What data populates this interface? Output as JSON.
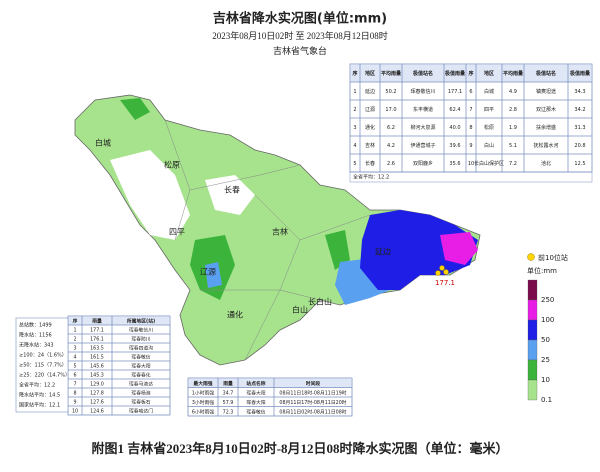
{
  "header": {
    "title": "吉林省降水实况图(单位:mm)",
    "subtitle": "2023年08月10日02时 至 2023年08月12日08时",
    "agency": "吉林省气象台"
  },
  "region_table": {
    "header": [
      "序",
      "地区",
      "平均雨量",
      "极值站名",
      "极值雨量",
      "序",
      "地区",
      "平均雨量",
      "极值站名",
      "极值雨量"
    ],
    "rows": [
      [
        "1",
        "延边",
        "50.2",
        "珲春敬信川",
        "177.1",
        "6",
        "白城",
        "4.9",
        "镇赉坦途",
        "34.3"
      ],
      [
        "2",
        "辽源",
        "17.0",
        "东丰横道",
        "62.4",
        "7",
        "四平",
        "2.8",
        "双辽那木",
        "34.2"
      ],
      [
        "3",
        "通化",
        "6.2",
        "柳河大泉源",
        "40.0",
        "8",
        "松原",
        "1.9",
        "扶余增盛",
        "31.3"
      ],
      [
        "4",
        "吉林",
        "4.2",
        "伊通营城子",
        "39.6",
        "9",
        "白山",
        "5.1",
        "抚松露水河",
        "20.8"
      ],
      [
        "5",
        "长春",
        "2.6",
        "双阳鹿乡",
        "35.6",
        "10",
        "长白山保护区",
        "7.2",
        "池北",
        "12.5"
      ]
    ],
    "footer": "全省平均：12.2"
  },
  "stats": [
    "总站数：1499",
    "降水站：1156",
    "无降水站：343",
    "≥100：24（1.6%）",
    "≥50：115（7.7%）",
    "≥25：220（14.7%）",
    "全省平均：12.2",
    "降水站平均：14.5",
    "国家站平均：12.1"
  ],
  "top10_table": {
    "header": [
      "序",
      "雨量",
      "所属地区(站)"
    ],
    "rows": [
      [
        "1",
        "177.1",
        "珲春敬信川"
      ],
      [
        "2",
        "176.1",
        "珲春防川"
      ],
      [
        "3",
        "163.5",
        "珲春四道沟"
      ],
      [
        "4",
        "161.5",
        "珲春敬信"
      ],
      [
        "5",
        "145.6",
        "珲春大阳"
      ],
      [
        "6",
        "145.3",
        "珲春春化"
      ],
      [
        "7",
        "129.0",
        "珲春马滴达"
      ],
      [
        "8",
        "127.8",
        "珲春杨泡"
      ],
      [
        "9",
        "127.6",
        "珲春板石"
      ],
      [
        "10",
        "124.6",
        "珲春哈达门"
      ]
    ]
  },
  "intensity_table": {
    "header": [
      "最大雨强",
      "雨量",
      "站点名称",
      "时间段"
    ],
    "rows": [
      [
        "1小时雨强",
        "34.7",
        "珲春大阳",
        "08月11日18时-08月11日19时"
      ],
      [
        "3小时雨强",
        "57.9",
        "珲春大阳",
        "08月11日17时-08月11日20时"
      ],
      [
        "6小时雨强",
        "72.3",
        "珲春敬信",
        "08月11日02时-08月11日08时"
      ]
    ]
  },
  "map_labels": [
    "白城",
    "松原",
    "长春",
    "四平",
    "吉林",
    "辽源",
    "通化",
    "白山",
    "长白山",
    "延边"
  ],
  "peak_label": "177.1",
  "legend": {
    "top10": "前10位站",
    "unit": "单位:mm",
    "levels": [
      {
        "label": "250",
        "color": "#7a0a4a"
      },
      {
        "label": "100",
        "color": "#e81ee6"
      },
      {
        "label": "50",
        "color": "#1e1ee6"
      },
      {
        "label": "25",
        "color": "#5aa0f0"
      },
      {
        "label": "10",
        "color": "#3cb43c"
      },
      {
        "label": "0.1",
        "color": "#a6e38c"
      }
    ]
  },
  "caption": "附图1  吉林省2023年8月10日02时-8月12日08时降水实况图（单位：毫米）"
}
